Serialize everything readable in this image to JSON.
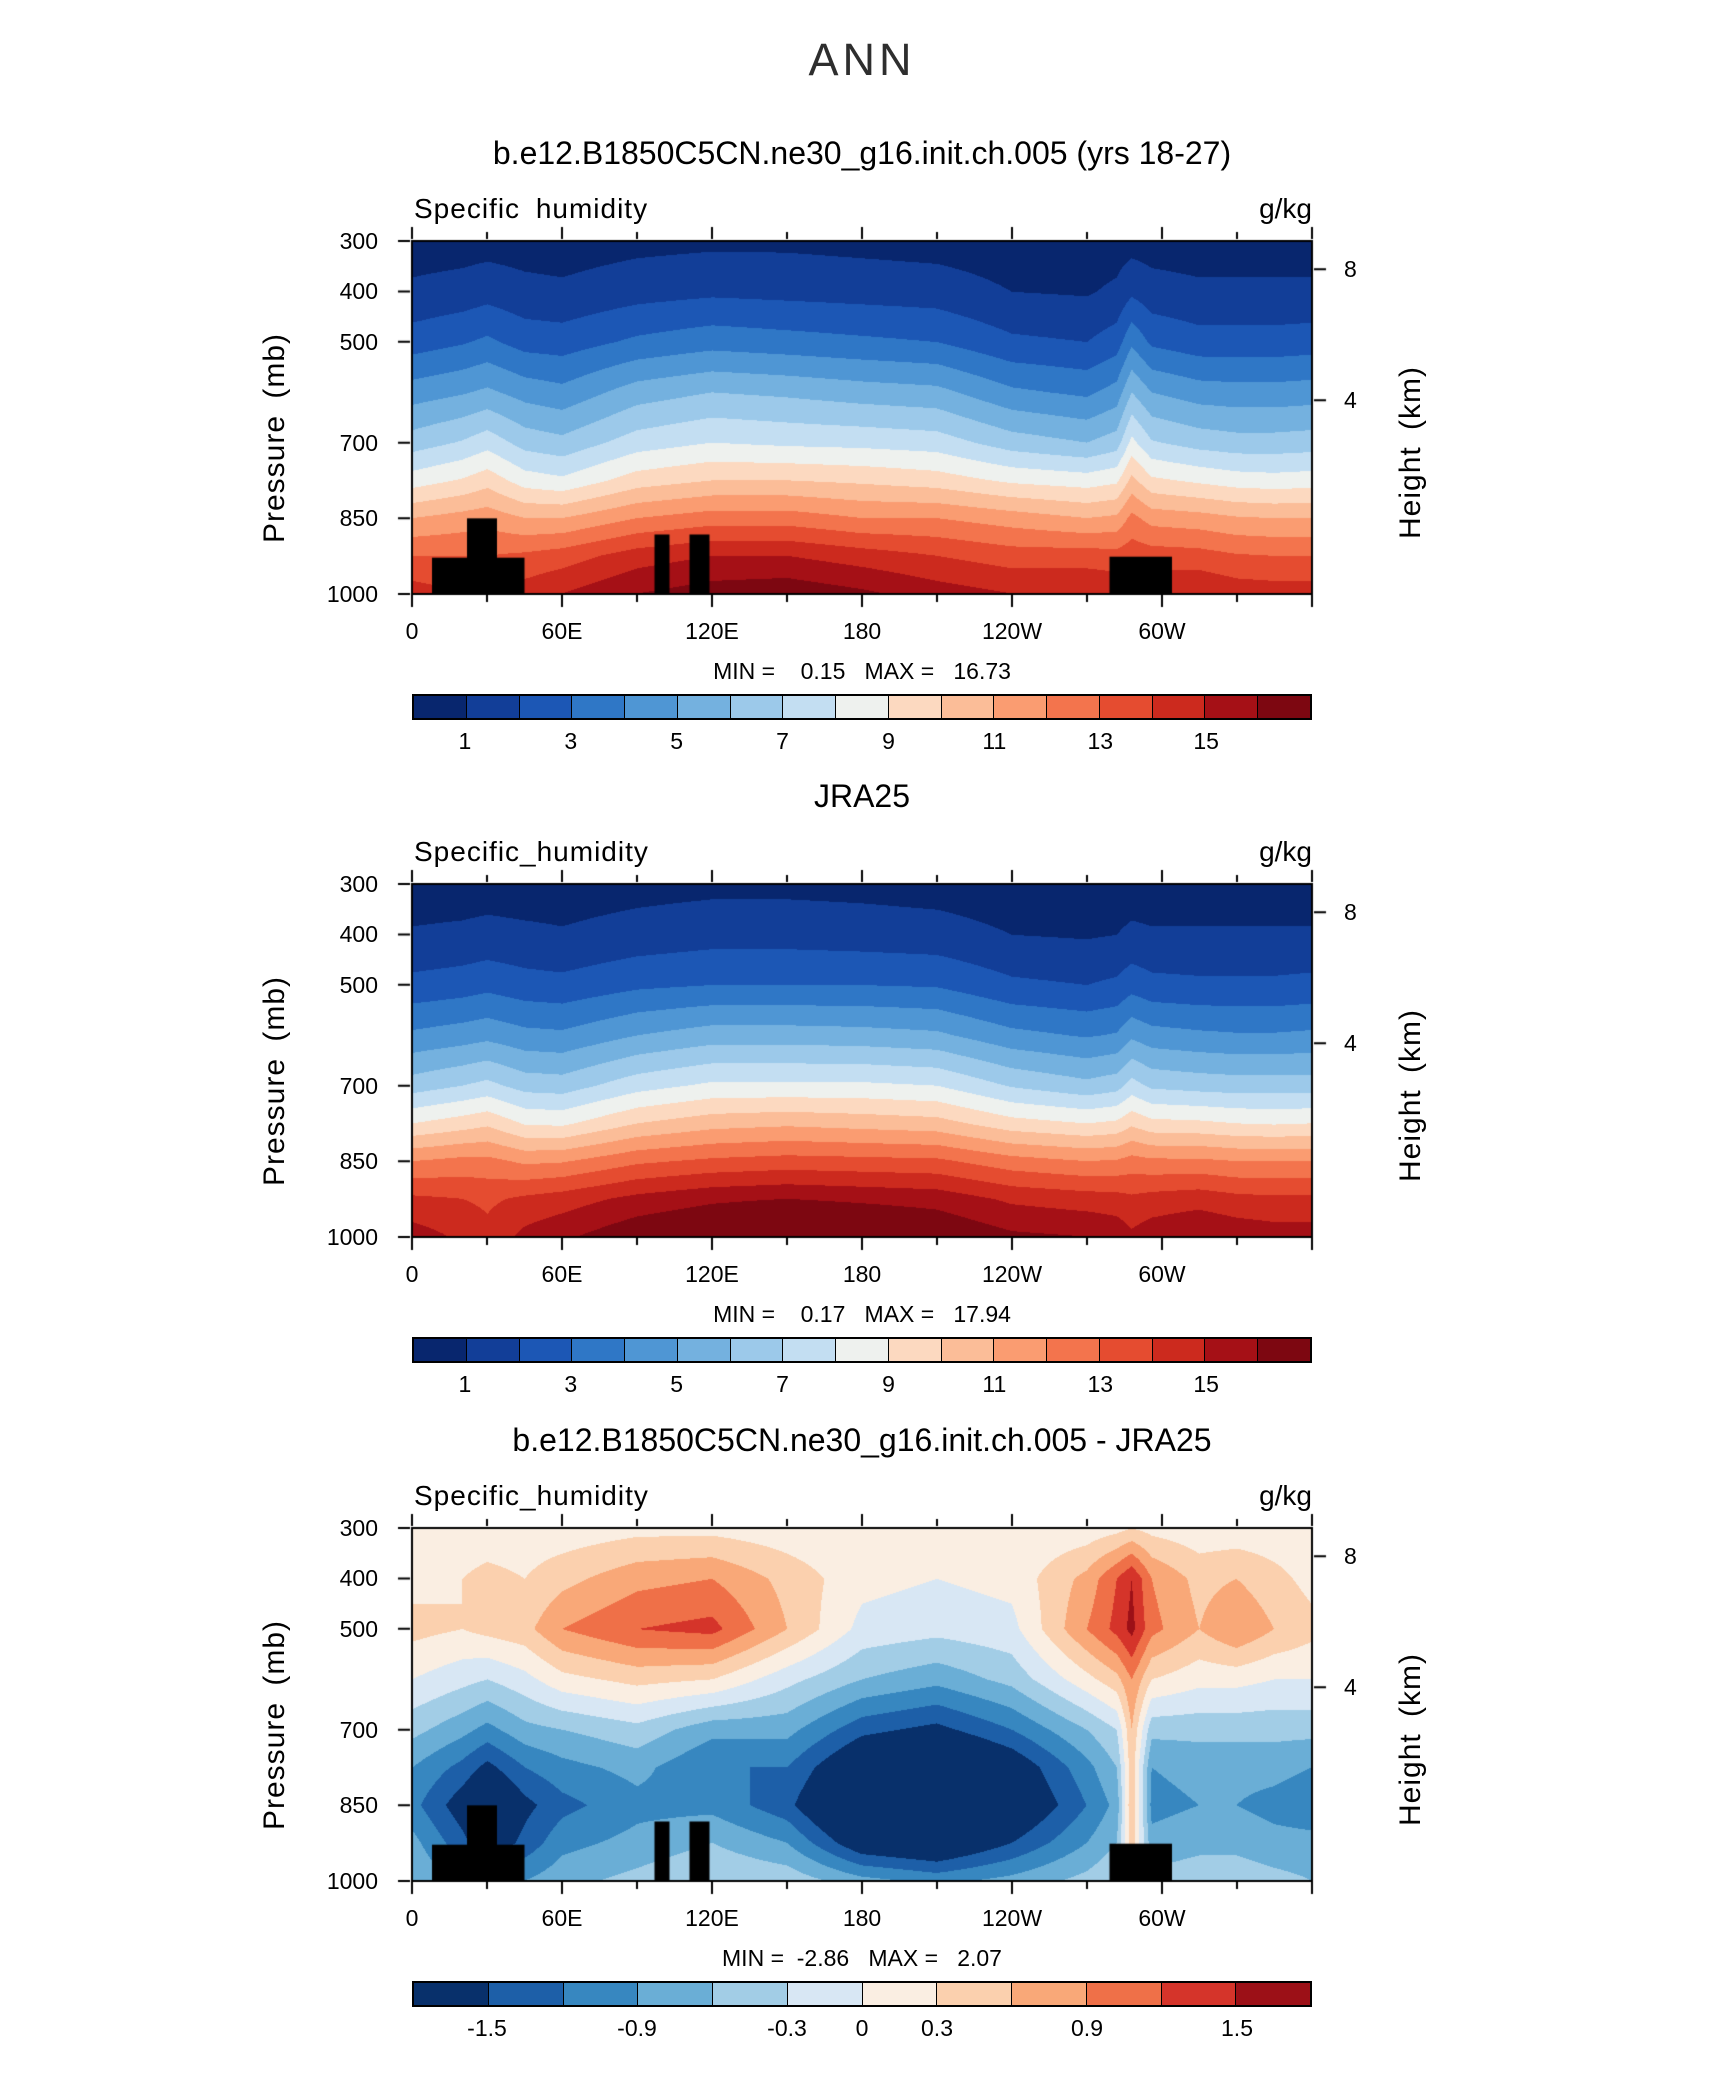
{
  "page_title": "ANN",
  "labels": {
    "pressure_axis": "Pressure (mb)",
    "height_axis": "Height (km)"
  },
  "axes": {
    "x_name": "longitude",
    "x_range": [
      0,
      360
    ],
    "x_major": [
      {
        "v": 0,
        "label": "0"
      },
      {
        "v": 60,
        "label": "60E"
      },
      {
        "v": 120,
        "label": "120E"
      },
      {
        "v": 180,
        "label": "180"
      },
      {
        "v": 240,
        "label": "120W"
      },
      {
        "v": 300,
        "label": "60W"
      }
    ],
    "x_minor_step": 30,
    "y_name": "pressure_mb",
    "y_range": [
      300,
      1000
    ],
    "y_ticks": [
      {
        "v": 300,
        "label": "300"
      },
      {
        "v": 400,
        "label": "400"
      },
      {
        "v": 500,
        "label": "500"
      },
      {
        "v": 700,
        "label": "700"
      },
      {
        "v": 850,
        "label": "850"
      },
      {
        "v": 1000,
        "label": "1000"
      }
    ],
    "y2_name": "height_km",
    "y2_ticks": [
      {
        "v": 356,
        "label": "8"
      },
      {
        "v": 616,
        "label": "4"
      }
    ]
  },
  "chart_data": [
    {
      "type": "heatmap",
      "title": "b.e12.B1850C5CN.ne30_g16.init.ch.005 (yrs 18-27)",
      "field_label": "Specific humidity",
      "units": "g/kg",
      "stats": "MIN =    0.15   MAX =   16.73",
      "min": 0.15,
      "max": 16.73,
      "lons": [
        0,
        20,
        30,
        45,
        60,
        90,
        120,
        150,
        180,
        210,
        240,
        270,
        282,
        288,
        296,
        315,
        330,
        345,
        360
      ],
      "pressures": [
        300,
        400,
        500,
        600,
        700,
        775,
        850,
        925,
        1000
      ],
      "values": [
        [
          0.5,
          0.55,
          0.6,
          0.55,
          0.5,
          0.7,
          0.8,
          0.8,
          0.7,
          0.6,
          0.45,
          0.4,
          0.5,
          0.6,
          0.55,
          0.5,
          0.5,
          0.5,
          0.5
        ],
        [
          1.2,
          1.4,
          1.6,
          1.3,
          1.2,
          1.6,
          1.8,
          1.7,
          1.6,
          1.5,
          1.0,
          0.9,
          1.2,
          1.8,
          1.4,
          1.2,
          1.2,
          1.2,
          1.2
        ],
        [
          2.5,
          2.9,
          3.2,
          2.6,
          2.5,
          3.2,
          3.6,
          3.4,
          3.2,
          3.0,
          2.2,
          2.0,
          2.5,
          3.8,
          2.8,
          2.4,
          2.4,
          2.4,
          2.5
        ],
        [
          4.5,
          4.9,
          5.2,
          4.6,
          4.3,
          5.5,
          6.0,
          5.8,
          5.5,
          5.3,
          4.2,
          3.8,
          4.4,
          6.0,
          5.0,
          4.5,
          4.4,
          4.4,
          4.5
        ],
        [
          6.5,
          7.1,
          7.6,
          6.6,
          6.3,
          7.5,
          8.0,
          7.8,
          7.7,
          7.5,
          6.5,
          6.0,
          6.5,
          8.3,
          7.1,
          6.6,
          6.4,
          6.4,
          6.5
        ],
        [
          8.5,
          9.1,
          9.6,
          8.5,
          8.2,
          9.5,
          10.0,
          10.0,
          9.8,
          9.5,
          8.8,
          8.5,
          8.8,
          10.3,
          9.2,
          8.8,
          8.5,
          8.4,
          8.5
        ],
        [
          11.0,
          11.4,
          11.6,
          11.0,
          11.0,
          12.0,
          12.5,
          12.5,
          12.0,
          12.0,
          11.5,
          11.0,
          11.2,
          12.3,
          11.6,
          11.4,
          11.1,
          11.0,
          11.0
        ],
        [
          13.0,
          13.0,
          13.0,
          13.2,
          13.5,
          14.5,
          15.0,
          15.0,
          14.5,
          14.0,
          13.5,
          13.5,
          13.4,
          13.6,
          13.5,
          13.4,
          13.1,
          13.0,
          13.0
        ],
        [
          14.5,
          14.0,
          13.5,
          14.5,
          15.0,
          16.0,
          16.5,
          16.7,
          16.2,
          15.5,
          15.0,
          15.0,
          14.8,
          14.5,
          14.8,
          15.0,
          14.6,
          14.5,
          14.5
        ]
      ],
      "levels": [
        1,
        2,
        3,
        4,
        5,
        6,
        7,
        8,
        9,
        10,
        11,
        12,
        13,
        14,
        15,
        16
      ],
      "colors": [
        "#08266e",
        "#123e98",
        "#1c57b5",
        "#2f77c6",
        "#4f96d4",
        "#74b1df",
        "#9cc9ea",
        "#c3def2",
        "#eef1ee",
        "#fcd9c0",
        "#fbbd98",
        "#fa9c71",
        "#f3744d",
        "#e54c30",
        "#cc2a1e",
        "#a51016",
        "#7d0711"
      ],
      "colorbar_labels": [
        "1",
        "3",
        "5",
        "7",
        "9",
        "11",
        "13",
        "15"
      ],
      "masks": [
        {
          "lon0": 8,
          "lon1": 45,
          "p_top": 928
        },
        {
          "lon0": 22,
          "lon1": 34,
          "p_top": 850
        },
        {
          "lon0": 97,
          "lon1": 103,
          "p_top": 882
        },
        {
          "lon0": 111,
          "lon1": 119,
          "p_top": 882
        },
        {
          "lon0": 279,
          "lon1": 304,
          "p_top": 926
        }
      ]
    },
    {
      "type": "heatmap",
      "title": "JRA25",
      "field_label": "Specific_humidity",
      "units": "g/kg",
      "stats": "MIN =    0.17   MAX =   17.94",
      "min": 0.17,
      "max": 17.94,
      "lons": [
        0,
        20,
        30,
        45,
        60,
        90,
        120,
        150,
        180,
        210,
        240,
        270,
        282,
        288,
        296,
        315,
        330,
        345,
        360
      ],
      "pressures": [
        300,
        400,
        500,
        600,
        700,
        775,
        850,
        925,
        1000
      ],
      "values": [
        [
          0.5,
          0.5,
          0.55,
          0.5,
          0.5,
          0.65,
          0.75,
          0.75,
          0.7,
          0.6,
          0.45,
          0.4,
          0.45,
          0.5,
          0.5,
          0.5,
          0.5,
          0.5,
          0.5
        ],
        [
          1.1,
          1.2,
          1.3,
          1.2,
          1.1,
          1.4,
          1.6,
          1.6,
          1.5,
          1.4,
          1.0,
          0.9,
          1.0,
          1.2,
          1.1,
          1.1,
          1.1,
          1.1,
          1.1
        ],
        [
          2.3,
          2.5,
          2.7,
          2.4,
          2.3,
          2.8,
          3.0,
          3.0,
          3.0,
          2.9,
          2.2,
          2.0,
          2.2,
          2.6,
          2.3,
          2.2,
          2.2,
          2.2,
          2.3
        ],
        [
          4.2,
          4.5,
          4.7,
          4.3,
          4.2,
          5.0,
          5.5,
          5.5,
          5.4,
          5.2,
          4.3,
          3.9,
          4.1,
          4.8,
          4.4,
          4.2,
          4.1,
          4.1,
          4.2
        ],
        [
          6.5,
          7.0,
          7.3,
          6.6,
          6.5,
          7.6,
          8.2,
          8.2,
          8.2,
          8.0,
          6.9,
          6.3,
          6.6,
          7.4,
          6.8,
          6.6,
          6.5,
          6.5,
          6.5
        ],
        [
          9.0,
          9.5,
          9.8,
          8.9,
          8.8,
          10.0,
          10.6,
          10.8,
          10.6,
          10.4,
          9.4,
          9.0,
          9.2,
          9.8,
          9.3,
          9.2,
          9.0,
          8.9,
          9.0
        ],
        [
          12.0,
          12.3,
          12.3,
          11.8,
          11.9,
          12.8,
          13.2,
          13.4,
          13.3,
          13.2,
          12.4,
          12.0,
          12.1,
          12.4,
          12.2,
          12.2,
          12.0,
          12.0,
          12.0
        ],
        [
          14.2,
          14.0,
          13.8,
          14.2,
          14.5,
          15.3,
          15.8,
          16.0,
          15.8,
          15.6,
          14.8,
          14.5,
          14.4,
          14.2,
          14.4,
          14.6,
          14.3,
          14.2,
          14.2
        ],
        [
          15.5,
          14.8,
          14.3,
          15.3,
          15.8,
          16.8,
          17.3,
          17.9,
          17.5,
          17.0,
          16.2,
          16.0,
          15.7,
          15.2,
          15.6,
          16.0,
          15.7,
          15.5,
          15.5
        ]
      ],
      "levels": [
        1,
        2,
        3,
        4,
        5,
        6,
        7,
        8,
        9,
        10,
        11,
        12,
        13,
        14,
        15,
        16
      ],
      "colors": [
        "#08266e",
        "#123e98",
        "#1c57b5",
        "#2f77c6",
        "#4f96d4",
        "#74b1df",
        "#9cc9ea",
        "#c3def2",
        "#eef1ee",
        "#fcd9c0",
        "#fbbd98",
        "#fa9c71",
        "#f3744d",
        "#e54c30",
        "#cc2a1e",
        "#a51016",
        "#7d0711"
      ],
      "colorbar_labels": [
        "1",
        "3",
        "5",
        "7",
        "9",
        "11",
        "13",
        "15"
      ],
      "masks": []
    },
    {
      "type": "heatmap",
      "title": "b.e12.B1850C5CN.ne30_g16.init.ch.005 - JRA25",
      "field_label": "Specific_humidity",
      "units": "g/kg",
      "stats": "MIN =  -2.86   MAX =   2.07",
      "min": -2.86,
      "max": 2.07,
      "lons": [
        0,
        20,
        30,
        45,
        60,
        90,
        120,
        150,
        180,
        210,
        240,
        270,
        282,
        288,
        296,
        315,
        330,
        345,
        360
      ],
      "pressures": [
        300,
        400,
        500,
        600,
        700,
        775,
        850,
        925,
        1000
      ],
      "values": [
        [
          0.1,
          0.1,
          0.1,
          0.1,
          0.1,
          0.2,
          0.2,
          0.1,
          0.0,
          0.0,
          0.05,
          0.1,
          0.2,
          0.3,
          0.2,
          0.1,
          0.1,
          0.1,
          0.1
        ],
        [
          0.2,
          0.3,
          0.4,
          0.3,
          0.5,
          0.8,
          0.9,
          0.5,
          0.1,
          0.0,
          0.1,
          0.7,
          1.2,
          1.5,
          0.9,
          0.5,
          0.6,
          0.4,
          0.2
        ],
        [
          0.4,
          0.3,
          0.4,
          0.5,
          0.9,
          1.2,
          1.3,
          0.6,
          -0.1,
          -0.2,
          -0.1,
          0.9,
          1.3,
          1.6,
          1.0,
          0.6,
          0.9,
          0.6,
          0.4
        ],
        [
          0.0,
          -0.2,
          -0.3,
          -0.1,
          0.2,
          0.4,
          0.3,
          -0.2,
          -0.6,
          -0.8,
          -0.5,
          0.2,
          0.5,
          0.9,
          0.3,
          0.1,
          0.1,
          0.0,
          0.0
        ],
        [
          -0.5,
          -0.8,
          -1.0,
          -0.7,
          -0.6,
          -0.4,
          -0.8,
          -0.8,
          -1.4,
          -1.6,
          -1.2,
          -0.6,
          -0.3,
          0.6,
          -0.5,
          -0.5,
          -0.5,
          -0.5,
          -0.5
        ],
        [
          -0.9,
          -1.3,
          -1.6,
          -1.2,
          -1.0,
          -0.8,
          -1.2,
          -1.2,
          -2.0,
          -2.3,
          -1.8,
          -1.0,
          -0.6,
          0.5,
          -0.9,
          -0.8,
          -0.8,
          -0.8,
          -0.9
        ],
        [
          -1.1,
          -1.7,
          -2.1,
          -1.6,
          -1.3,
          -1.0,
          -1.0,
          -1.4,
          -2.4,
          -2.7,
          -2.0,
          -1.2,
          -0.8,
          0.6,
          -1.0,
          -0.9,
          -0.9,
          -1.0,
          -1.1
        ],
        [
          -0.8,
          -1.4,
          -1.8,
          -1.4,
          -1.0,
          -0.8,
          -0.6,
          -0.9,
          -1.8,
          -2.0,
          -1.5,
          -0.9,
          -0.6,
          0.5,
          -0.8,
          -0.7,
          -0.7,
          -0.8,
          -0.8
        ],
        [
          -0.6,
          -1.0,
          -1.2,
          -0.9,
          -0.7,
          -0.5,
          -0.3,
          -0.4,
          -0.8,
          -1.0,
          -0.8,
          -0.5,
          -0.3,
          0.3,
          -0.5,
          -0.4,
          -0.4,
          -0.5,
          -0.6
        ]
      ],
      "levels": [
        -1.5,
        -1.2,
        -0.9,
        -0.6,
        -0.3,
        0,
        0.3,
        0.6,
        0.9,
        1.2,
        1.5
      ],
      "colors": [
        "#08306b",
        "#1d5fa8",
        "#3787c0",
        "#6aaed6",
        "#a2cde6",
        "#d8e7f4",
        "#faeee2",
        "#fbd0ae",
        "#f9a878",
        "#ef7048",
        "#d5342a",
        "#9c1017"
      ],
      "colorbar_labels": [
        "-1.5",
        "-0.9",
        "-0.3",
        "0",
        "0.3",
        "0.9",
        "1.5"
      ],
      "masks": [
        {
          "lon0": 8,
          "lon1": 45,
          "p_top": 928
        },
        {
          "lon0": 22,
          "lon1": 34,
          "p_top": 850
        },
        {
          "lon0": 97,
          "lon1": 103,
          "p_top": 882
        },
        {
          "lon0": 111,
          "lon1": 119,
          "p_top": 882
        },
        {
          "lon0": 279,
          "lon1": 304,
          "p_top": 926
        }
      ]
    }
  ]
}
